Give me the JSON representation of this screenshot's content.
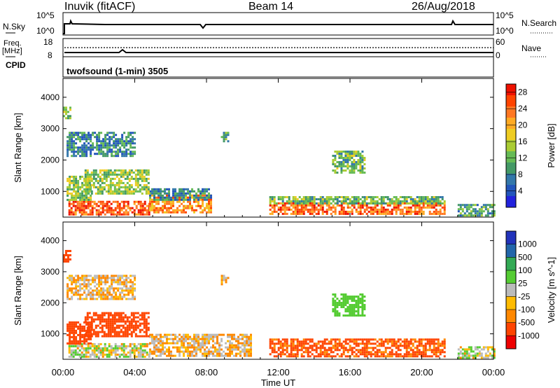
{
  "header": {
    "station": "Inuvik (fitACF)",
    "beam": "Beam 14",
    "date": "26/Aug/2018"
  },
  "left_labels": {
    "nsky": "N.Sky",
    "freq": "Freq.",
    "freq_unit": "[MHz]",
    "cpid": "CPID",
    "nsky_hi": "10^5",
    "nsky_lo": "10^0",
    "freq_hi": "18",
    "freq_lo": "8"
  },
  "right_labels": {
    "nsearch": "N.Search",
    "nave": "Nave",
    "nsearch_hi": "10^5",
    "nsearch_lo": "10^0",
    "nave_hi": "60",
    "nave_lo": "0"
  },
  "cpid_text": "twofsound (1-min) 3505",
  "colors": {
    "power": [
      "#2222dd",
      "#2255bb",
      "#3377aa",
      "#449966",
      "#66bb55",
      "#aacc33",
      "#eecc22",
      "#ffaa22",
      "#ff7722",
      "#ff4400",
      "#ee1100"
    ],
    "velocity": [
      "#ee0000",
      "#ff4400",
      "#ff8800",
      "#ffbb00",
      "#bbbbbb",
      "#55cc33",
      "#33aa55",
      "#2266aa",
      "#2233bb"
    ]
  },
  "chart_data": [
    {
      "type": "heatmap",
      "panel": "power",
      "xlabel": "",
      "ylabel": "Slant Range [km]",
      "x_ticks": [
        "00:00",
        "04:00",
        "08:00",
        "12:00",
        "16:00",
        "20:00",
        "00:00"
      ],
      "y_ticks": [
        1000,
        2000,
        3000,
        4000
      ],
      "ylim": [
        180,
        4600
      ],
      "xlim_hours": [
        0,
        24
      ],
      "colorbar": {
        "label": "Power [dB]",
        "ticks": [
          4,
          8,
          12,
          16,
          20,
          24,
          28
        ],
        "range": [
          0,
          30
        ]
      },
      "regions": [
        {
          "t": [
            0.3,
            4.8
          ],
          "r": [
            250,
            700
          ],
          "power": 25
        },
        {
          "t": [
            4.8,
            8.2
          ],
          "r": [
            300,
            900
          ],
          "power": 22
        },
        {
          "t": [
            4.8,
            8.2
          ],
          "r": [
            700,
            1100
          ],
          "power": 8
        },
        {
          "t": [
            11.5,
            21.3
          ],
          "r": [
            250,
            650
          ],
          "power": 24
        },
        {
          "t": [
            11.5,
            21.3
          ],
          "r": [
            600,
            850
          ],
          "power": 12
        },
        {
          "t": [
            0.2,
            1.5
          ],
          "r": [
            750,
            1500
          ],
          "power": 14
        },
        {
          "t": [
            1.2,
            4.8
          ],
          "r": [
            900,
            1700
          ],
          "power": 14
        },
        {
          "t": [
            0.2,
            4.0
          ],
          "r": [
            2100,
            2900
          ],
          "power": 8
        },
        {
          "t": [
            8.8,
            9.2
          ],
          "r": [
            2600,
            2900
          ],
          "power": 10
        },
        {
          "t": [
            15.0,
            16.8
          ],
          "r": [
            1600,
            2300
          ],
          "power": 12
        },
        {
          "t": [
            0.0,
            0.4
          ],
          "r": [
            3300,
            3700
          ],
          "power": 14
        },
        {
          "t": [
            22.0,
            24.0
          ],
          "r": [
            200,
            600
          ],
          "power": 10
        }
      ]
    },
    {
      "type": "heatmap",
      "panel": "velocity",
      "xlabel": "Time UT",
      "ylabel": "Slant Range [km]",
      "x_ticks": [
        "00:00",
        "04:00",
        "08:00",
        "12:00",
        "16:00",
        "20:00",
        "00:00"
      ],
      "y_ticks": [
        1000,
        2000,
        3000,
        4000
      ],
      "ylim": [
        180,
        4600
      ],
      "xlim_hours": [
        0,
        24
      ],
      "colorbar": {
        "label": "Velocity [m s^-1]",
        "ticks": [
          1000,
          500,
          100,
          25,
          -25,
          -100,
          -500,
          -1000
        ]
      },
      "regions": [
        {
          "t": [
            0.3,
            4.8
          ],
          "r": [
            250,
            700
          ],
          "velocity": 60
        },
        {
          "t": [
            4.8,
            10.5
          ],
          "r": [
            300,
            1000
          ],
          "velocity": 0
        },
        {
          "t": [
            11.5,
            21.3
          ],
          "r": [
            250,
            850
          ],
          "velocity": -150
        },
        {
          "t": [
            0.2,
            1.5
          ],
          "r": [
            700,
            1400
          ],
          "velocity": -300
        },
        {
          "t": [
            1.2,
            4.8
          ],
          "r": [
            900,
            1700
          ],
          "velocity": -300
        },
        {
          "t": [
            0.2,
            4.0
          ],
          "r": [
            2100,
            2900
          ],
          "velocity": 0
        },
        {
          "t": [
            8.8,
            9.2
          ],
          "r": [
            2600,
            2900
          ],
          "velocity": 0
        },
        {
          "t": [
            15.0,
            16.8
          ],
          "r": [
            1600,
            2300
          ],
          "velocity": 200
        },
        {
          "t": [
            0.0,
            0.4
          ],
          "r": [
            3300,
            3700
          ],
          "velocity": -300
        },
        {
          "t": [
            22.0,
            24.0
          ],
          "r": [
            200,
            600
          ],
          "velocity": 60
        }
      ]
    }
  ]
}
